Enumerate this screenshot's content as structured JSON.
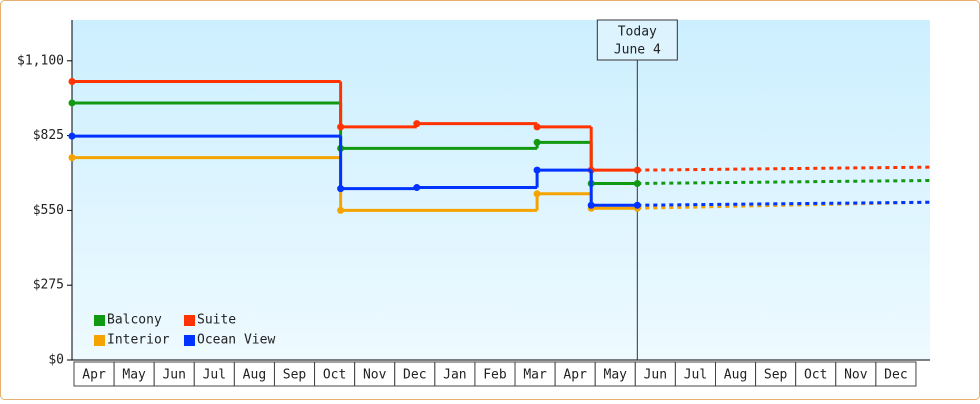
{
  "chart_data": {
    "type": "step",
    "xlim": [
      0,
      21.4
    ],
    "xticks": [
      {
        "value": 0.5,
        "label": "Apr"
      },
      {
        "value": 1.5,
        "label": "May"
      },
      {
        "value": 2.5,
        "label": "Jun"
      },
      {
        "value": 3.5,
        "label": "Jul"
      },
      {
        "value": 4.5,
        "label": "Aug"
      },
      {
        "value": 5.5,
        "label": "Sep"
      },
      {
        "value": 6.5,
        "label": "Oct"
      },
      {
        "value": 7.5,
        "label": "Nov"
      },
      {
        "value": 8.5,
        "label": "Dec"
      },
      {
        "value": 9.5,
        "label": "Jan"
      },
      {
        "value": 10.5,
        "label": "Feb"
      },
      {
        "value": 11.5,
        "label": "Mar"
      },
      {
        "value": 12.5,
        "label": "Apr"
      },
      {
        "value": 13.5,
        "label": "May"
      },
      {
        "value": 14.5,
        "label": "Jun"
      },
      {
        "value": 15.5,
        "label": "Jul"
      },
      {
        "value": 16.5,
        "label": "Aug"
      },
      {
        "value": 17.5,
        "label": "Sep"
      },
      {
        "value": 18.5,
        "label": "Oct"
      },
      {
        "value": 19.5,
        "label": "Nov"
      },
      {
        "value": 20.5,
        "label": "Dec"
      }
    ],
    "ylim": [
      0,
      1250
    ],
    "yticks": [
      {
        "value": 0,
        "label": "$0"
      },
      {
        "value": 275,
        "label": "$275"
      },
      {
        "value": 550,
        "label": "$550"
      },
      {
        "value": 825,
        "label": "$825"
      },
      {
        "value": 1100,
        "label": "$1,100"
      }
    ],
    "today": {
      "x": 14.1,
      "lines": [
        "Today",
        "June 4"
      ]
    },
    "legend": "bottom-left",
    "series": [
      {
        "name": "Balcony",
        "color": "#119911",
        "x": [
          0,
          6.7,
          11.6,
          12.95,
          14.1
        ],
        "values": [
          945,
          778,
          800,
          649,
          649
        ],
        "forecast": {
          "x": [
            14.1,
            21.4
          ],
          "values": [
            649,
            660
          ]
        }
      },
      {
        "name": "Suite",
        "color": "#ff3300",
        "x": [
          0,
          6.7,
          8.6,
          11.6,
          12.95,
          14.1
        ],
        "values": [
          1024,
          857,
          869,
          857,
          698,
          698
        ],
        "forecast": {
          "x": [
            14.1,
            21.4
          ],
          "values": [
            698,
            709
          ]
        }
      },
      {
        "name": "Interior",
        "color": "#f5a300",
        "x": [
          0,
          6.7,
          11.6,
          12.95,
          14.1
        ],
        "values": [
          744,
          550,
          611,
          558,
          558
        ],
        "forecast": {
          "x": [
            14.1,
            21.4
          ],
          "values": [
            558,
            580
          ]
        }
      },
      {
        "name": "Ocean View",
        "color": "#0033ff",
        "x": [
          0,
          6.7,
          8.6,
          11.6,
          12.95,
          14.1
        ],
        "values": [
          823,
          630,
          634,
          698,
          569,
          569
        ],
        "forecast": {
          "x": [
            14.1,
            21.4
          ],
          "values": [
            569,
            580
          ]
        }
      }
    ]
  }
}
